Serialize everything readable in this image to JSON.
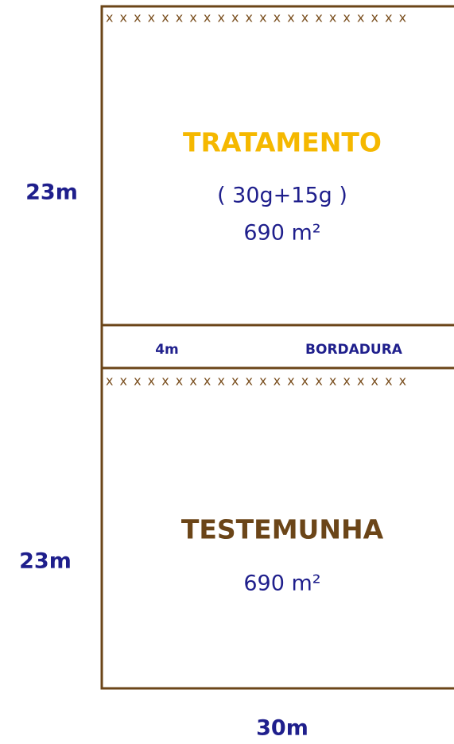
{
  "plots": [
    {
      "title": "TRATAMENTO",
      "dose": "( 30g+15g )",
      "area": "690 m²",
      "side": "23m",
      "markers": "x x x x x x x x x x x x x x x x x x x x x x"
    },
    {
      "title": "TESTEMUNHA",
      "area": "690 m²",
      "side": "23m",
      "markers": "x x x x x x x x x x x x x x x x x x x x x x"
    }
  ],
  "border": {
    "width": "4m",
    "label": "BORDADURA"
  },
  "bottom_width": "30m"
}
